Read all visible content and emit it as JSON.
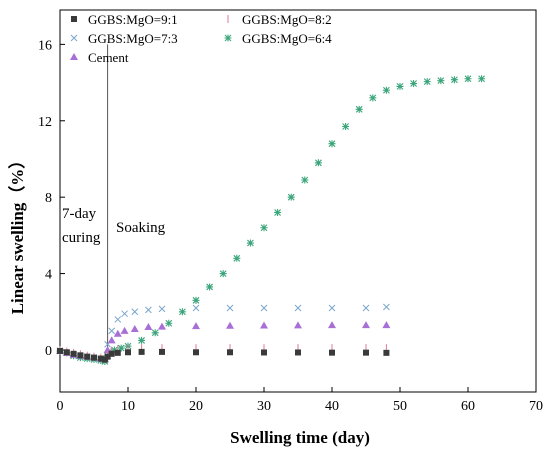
{
  "chart_data": {
    "type": "scatter",
    "xlabel": "Swelling time (day)",
    "ylabel": "Linear swelling（%）",
    "xlim": [
      0,
      70
    ],
    "ylim": [
      -2.2,
      17.8
    ],
    "xticks": [
      0,
      10,
      20,
      30,
      40,
      50,
      60,
      70
    ],
    "yticks": [
      0,
      4,
      8,
      12,
      16
    ],
    "grid": false,
    "legend_position": "top-left",
    "annotations": {
      "curing": [
        "7-day",
        "curing"
      ],
      "soaking": "Soaking",
      "divider_x": 7
    },
    "series": [
      {
        "name": "GGBS:MgO=9:1",
        "marker": "square",
        "color": "#3a3a3a",
        "x": [
          0,
          1,
          2,
          3,
          4,
          5,
          6,
          6.6,
          7,
          7.6,
          8.5,
          10,
          12,
          15,
          20,
          25,
          30,
          35,
          40,
          45,
          48
        ],
        "y": [
          -0.05,
          -0.12,
          -0.2,
          -0.28,
          -0.35,
          -0.4,
          -0.45,
          -0.5,
          -0.35,
          -0.2,
          -0.15,
          -0.12,
          -0.1,
          -0.1,
          -0.12,
          -0.12,
          -0.13,
          -0.13,
          -0.14,
          -0.14,
          -0.15
        ]
      },
      {
        "name": "GGBS:MgO=8:2",
        "marker": "vline",
        "color": "#e07a9a",
        "x": [
          0,
          1,
          2,
          3,
          4,
          5,
          6,
          6.6,
          7,
          7.6,
          8.5,
          10,
          12,
          15,
          20,
          25,
          30,
          35,
          40,
          45,
          48
        ],
        "y": [
          -0.02,
          -0.08,
          -0.15,
          -0.22,
          -0.3,
          -0.35,
          -0.4,
          -0.45,
          -0.25,
          -0.05,
          0.05,
          0.08,
          0.1,
          0.1,
          0.1,
          0.1,
          0.1,
          0.1,
          0.1,
          0.1,
          0.1
        ]
      },
      {
        "name": "GGBS:MgO=7:3",
        "marker": "cross",
        "color": "#7aa6cc",
        "x": [
          0,
          1,
          2,
          3,
          4,
          5,
          6,
          6.6,
          7,
          7.6,
          8.5,
          9.5,
          11,
          13,
          15,
          20,
          25,
          30,
          35,
          40,
          45,
          48
        ],
        "y": [
          -0.05,
          -0.15,
          -0.25,
          -0.3,
          -0.35,
          -0.4,
          -0.45,
          -0.5,
          0.3,
          1.0,
          1.6,
          1.9,
          2.0,
          2.1,
          2.15,
          2.2,
          2.2,
          2.2,
          2.2,
          2.2,
          2.2,
          2.25
        ]
      },
      {
        "name": "GGBS:MgO=6:4",
        "marker": "asterisk",
        "color": "#3aa57a",
        "x": [
          0,
          1,
          2,
          3,
          4,
          5,
          6,
          6.6,
          7,
          7.5,
          8,
          9,
          10,
          12,
          14,
          16,
          18,
          20,
          22,
          24,
          26,
          28,
          30,
          32,
          34,
          36,
          38,
          40,
          42,
          44,
          46,
          48,
          50,
          52,
          54,
          56,
          58,
          60,
          62
        ],
        "y": [
          -0.05,
          -0.15,
          -0.3,
          -0.4,
          -0.45,
          -0.5,
          -0.55,
          -0.6,
          -0.3,
          -0.1,
          0.0,
          0.1,
          0.2,
          0.5,
          0.9,
          1.4,
          2.0,
          2.6,
          3.3,
          4.0,
          4.8,
          5.6,
          6.4,
          7.2,
          8.0,
          8.9,
          9.8,
          10.8,
          11.7,
          12.6,
          13.2,
          13.6,
          13.8,
          13.95,
          14.05,
          14.1,
          14.15,
          14.2,
          14.2
        ]
      },
      {
        "name": "Cement",
        "marker": "triangle",
        "color": "#a86fd6",
        "x": [
          0,
          1,
          2,
          3,
          4,
          5,
          6,
          6.6,
          7,
          7.6,
          8.5,
          9.5,
          11,
          13,
          15,
          20,
          25,
          30,
          35,
          40,
          45,
          48
        ],
        "y": [
          -0.05,
          -0.15,
          -0.25,
          -0.3,
          -0.35,
          -0.4,
          -0.45,
          -0.5,
          0.0,
          0.5,
          0.85,
          1.0,
          1.1,
          1.2,
          1.22,
          1.25,
          1.27,
          1.28,
          1.29,
          1.3,
          1.3,
          1.3
        ]
      }
    ]
  }
}
